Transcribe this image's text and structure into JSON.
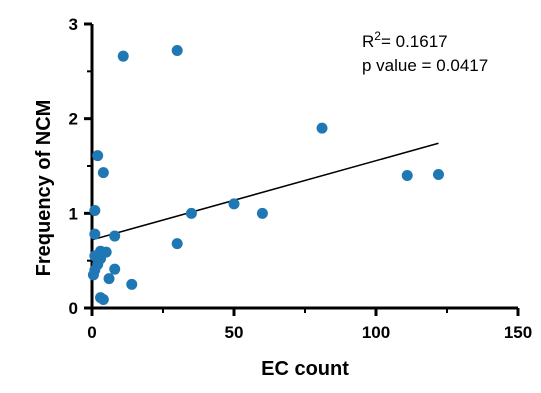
{
  "chart_data": {
    "type": "scatter",
    "xlabel": "EC count",
    "ylabel": "Frequency of NCM",
    "xlim": [
      0,
      150
    ],
    "ylim": [
      0,
      3
    ],
    "xticks": [
      0,
      50,
      100,
      150
    ],
    "yticks": [
      0,
      1,
      2,
      3
    ],
    "grid": false,
    "legend": "none",
    "marker_color": "#1f77b4",
    "line_color": "#000000",
    "points": [
      {
        "x": 11,
        "y": 2.66
      },
      {
        "x": 30,
        "y": 2.72
      },
      {
        "x": 81,
        "y": 1.9
      },
      {
        "x": 2,
        "y": 1.61
      },
      {
        "x": 4,
        "y": 1.43
      },
      {
        "x": 1,
        "y": 1.03
      },
      {
        "x": 1,
        "y": 0.78
      },
      {
        "x": 8,
        "y": 0.76
      },
      {
        "x": 3,
        "y": 0.6
      },
      {
        "x": 5,
        "y": 0.59
      },
      {
        "x": 1,
        "y": 0.55
      },
      {
        "x": 3,
        "y": 0.52
      },
      {
        "x": 2,
        "y": 0.46
      },
      {
        "x": 1,
        "y": 0.4
      },
      {
        "x": 0.5,
        "y": 0.35
      },
      {
        "x": 8,
        "y": 0.41
      },
      {
        "x": 6,
        "y": 0.31
      },
      {
        "x": 14,
        "y": 0.25
      },
      {
        "x": 3,
        "y": 0.11
      },
      {
        "x": 4,
        "y": 0.09
      },
      {
        "x": 30,
        "y": 0.68
      },
      {
        "x": 35,
        "y": 1.0
      },
      {
        "x": 50,
        "y": 1.1
      },
      {
        "x": 60,
        "y": 1.0
      },
      {
        "x": 111,
        "y": 1.4
      },
      {
        "x": 122,
        "y": 1.41
      }
    ],
    "trendline": {
      "x1": 0,
      "y1": 0.72,
      "x2": 122,
      "y2": 1.74
    },
    "annotation": {
      "r2_label": "R",
      "r2_sup": "2",
      "r2_value": "= 0.1617",
      "p_value": "p value = 0.0417"
    }
  }
}
